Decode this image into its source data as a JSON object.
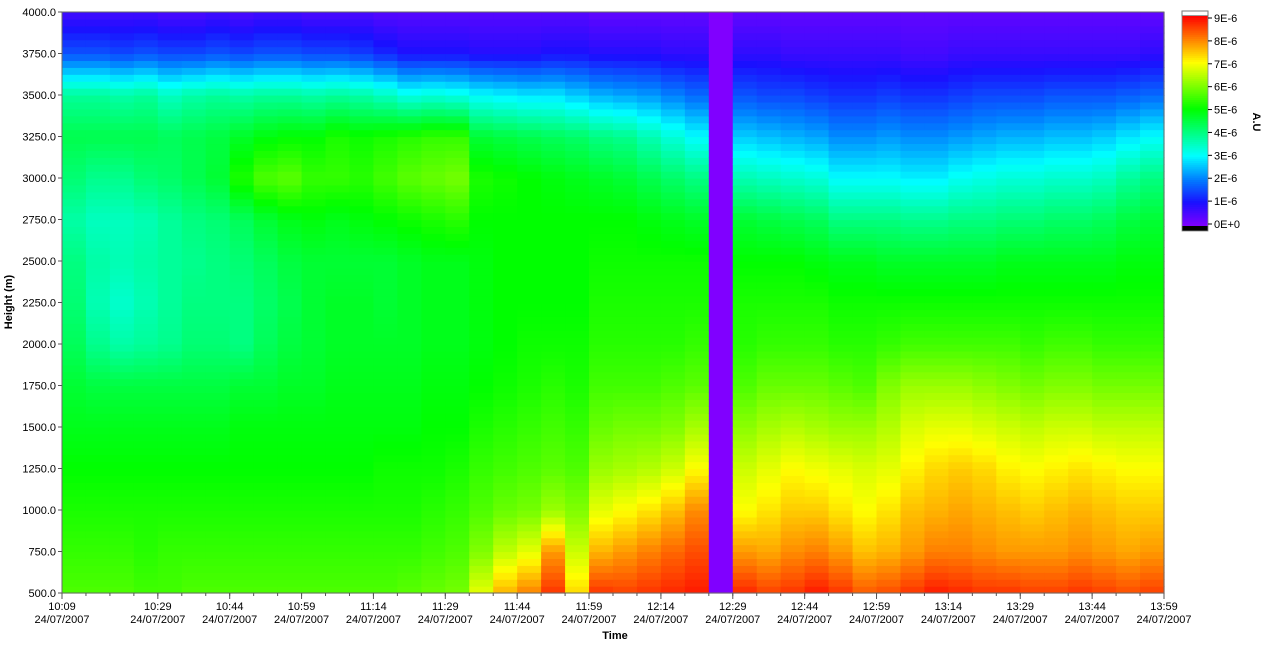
{
  "chart_data": {
    "type": "heatmap",
    "title": "",
    "xlabel": "Time",
    "ylabel": "Height (m)",
    "colorbar_label": "A.U",
    "ylim": [
      500,
      4000
    ],
    "y_ticks": [
      "500.0",
      "750.0",
      "1000.0",
      "1250.0",
      "1500.0",
      "1750.0",
      "2000.0",
      "2250.0",
      "2500.0",
      "2750.0",
      "3000.0",
      "3250.0",
      "3500.0",
      "3750.0",
      "4000.0"
    ],
    "x_start": "10:09",
    "x_end": "13:59",
    "x_ticks": [
      {
        "time": "10:09",
        "date": "24/07/2007"
      },
      {
        "time": "10:29",
        "date": "24/07/2007"
      },
      {
        "time": "10:44",
        "date": "24/07/2007"
      },
      {
        "time": "10:59",
        "date": "24/07/2007"
      },
      {
        "time": "11:14",
        "date": "24/07/2007"
      },
      {
        "time": "11:29",
        "date": "24/07/2007"
      },
      {
        "time": "11:44",
        "date": "24/07/2007"
      },
      {
        "time": "11:59",
        "date": "24/07/2007"
      },
      {
        "time": "12:14",
        "date": "24/07/2007"
      },
      {
        "time": "12:29",
        "date": "24/07/2007"
      },
      {
        "time": "12:44",
        "date": "24/07/2007"
      },
      {
        "time": "12:59",
        "date": "24/07/2007"
      },
      {
        "time": "13:14",
        "date": "24/07/2007"
      },
      {
        "time": "13:29",
        "date": "24/07/2007"
      },
      {
        "time": "13:44",
        "date": "24/07/2007"
      },
      {
        "time": "13:59",
        "date": "24/07/2007"
      }
    ],
    "colorbar_ticks": [
      "9E-6",
      "8E-6",
      "7E-6",
      "6E-6",
      "5E-6",
      "4E-6",
      "3E-6",
      "2E-6",
      "1E-6",
      "0E+0"
    ],
    "value_range": [
      0,
      9
    ],
    "value_unit_scale": "1E-6",
    "colormap": [
      "#8000ff",
      "#1a10ff",
      "#0080ff",
      "#00ffff",
      "#00ff80",
      "#00ff00",
      "#80ff00",
      "#ffff00",
      "#ff8000",
      "#ff0000"
    ],
    "grid": false,
    "missing_column": {
      "time": "12:24",
      "value": 0
    },
    "profile_heights": [
      500,
      750,
      1000,
      1250,
      1500,
      1750,
      2000,
      2250,
      2500,
      2750,
      3000,
      3250,
      3500,
      3750,
      4000
    ],
    "profiles": [
      {
        "time": "10:09",
        "values": [
          5.6,
          5.4,
          5.2,
          5.0,
          4.8,
          4.6,
          4.3,
          4.1,
          4.0,
          3.7,
          4.1,
          4.4,
          3.8,
          1.6,
          0.6
        ]
      },
      {
        "time": "10:14",
        "values": [
          5.6,
          5.4,
          5.2,
          5.0,
          4.8,
          4.5,
          3.9,
          3.6,
          3.7,
          3.5,
          3.9,
          4.4,
          3.8,
          1.6,
          0.6
        ]
      },
      {
        "time": "10:19",
        "values": [
          5.6,
          5.4,
          5.2,
          5.0,
          4.8,
          4.5,
          3.7,
          3.4,
          3.6,
          3.5,
          3.9,
          4.4,
          3.7,
          1.5,
          0.6
        ]
      },
      {
        "time": "10:24",
        "values": [
          5.5,
          5.3,
          5.2,
          5.0,
          4.8,
          4.5,
          3.8,
          3.6,
          3.7,
          3.6,
          4.1,
          4.4,
          3.8,
          1.6,
          0.6
        ]
      },
      {
        "time": "10:29",
        "values": [
          5.5,
          5.4,
          5.2,
          5.0,
          4.8,
          4.5,
          3.9,
          3.8,
          3.8,
          3.8,
          4.2,
          4.3,
          3.5,
          1.5,
          0.5
        ]
      },
      {
        "time": "10:34",
        "values": [
          5.6,
          5.4,
          5.2,
          5.0,
          4.8,
          4.5,
          4.1,
          4.0,
          3.9,
          4.0,
          4.4,
          4.4,
          3.7,
          1.5,
          0.5
        ]
      },
      {
        "time": "10:39",
        "values": [
          5.6,
          5.4,
          5.2,
          5.0,
          4.8,
          4.5,
          4.1,
          4.0,
          4.0,
          4.1,
          4.6,
          4.5,
          3.8,
          1.6,
          0.6
        ]
      },
      {
        "time": "10:44",
        "values": [
          5.6,
          5.4,
          5.2,
          5.0,
          4.9,
          4.6,
          4.0,
          4.0,
          4.1,
          4.3,
          5.2,
          4.7,
          3.7,
          1.5,
          0.5
        ]
      },
      {
        "time": "10:49",
        "values": [
          5.6,
          5.4,
          5.2,
          5.0,
          4.9,
          4.6,
          4.3,
          4.2,
          4.3,
          4.6,
          5.6,
          4.9,
          3.8,
          1.6,
          0.6
        ]
      },
      {
        "time": "10:54",
        "values": [
          5.6,
          5.4,
          5.2,
          5.0,
          4.9,
          4.7,
          4.5,
          4.4,
          4.5,
          4.8,
          5.7,
          5.0,
          3.8,
          1.6,
          0.6
        ]
      },
      {
        "time": "10:59",
        "values": [
          5.6,
          5.4,
          5.2,
          5.0,
          4.9,
          4.7,
          4.6,
          4.6,
          4.6,
          4.9,
          5.4,
          5.0,
          3.7,
          1.5,
          0.5
        ]
      },
      {
        "time": "11:04",
        "values": [
          5.6,
          5.4,
          5.2,
          5.0,
          4.9,
          4.8,
          4.7,
          4.7,
          4.6,
          4.8,
          5.4,
          5.2,
          3.8,
          1.5,
          0.5
        ]
      },
      {
        "time": "11:09",
        "values": [
          5.6,
          5.4,
          5.2,
          5.0,
          4.9,
          4.8,
          4.7,
          4.7,
          4.6,
          4.9,
          5.3,
          5.1,
          3.7,
          1.4,
          0.5
        ]
      },
      {
        "time": "11:14",
        "values": [
          5.6,
          5.4,
          5.2,
          5.1,
          4.9,
          4.8,
          4.7,
          4.6,
          4.6,
          5.0,
          5.5,
          5.2,
          3.5,
          1.2,
          0.4
        ]
      },
      {
        "time": "11:19",
        "values": [
          5.7,
          5.4,
          5.2,
          5.1,
          4.9,
          4.8,
          4.7,
          4.7,
          4.7,
          5.1,
          5.7,
          5.3,
          3.2,
          1.0,
          0.4
        ]
      },
      {
        "time": "11:24",
        "values": [
          5.8,
          5.5,
          5.3,
          5.1,
          5.0,
          4.9,
          4.8,
          4.8,
          4.8,
          5.2,
          5.8,
          5.4,
          3.3,
          1.0,
          0.4
        ]
      },
      {
        "time": "11:29",
        "values": [
          5.9,
          5.6,
          5.4,
          5.2,
          5.0,
          4.9,
          4.8,
          4.8,
          4.8,
          5.3,
          5.9,
          5.4,
          3.2,
          1.0,
          0.4
        ]
      },
      {
        "time": "11:34",
        "values": [
          6.8,
          6.0,
          5.6,
          5.4,
          5.2,
          5.0,
          4.9,
          4.9,
          4.9,
          5.0,
          5.2,
          4.6,
          3.0,
          0.9,
          0.4
        ]
      },
      {
        "time": "11:39",
        "values": [
          7.6,
          6.5,
          5.8,
          5.5,
          5.3,
          5.1,
          5.0,
          5.0,
          5.0,
          5.0,
          5.1,
          4.5,
          2.9,
          0.9,
          0.4
        ]
      },
      {
        "time": "11:44",
        "values": [
          8.0,
          6.8,
          5.9,
          5.6,
          5.4,
          5.2,
          5.1,
          5.0,
          5.0,
          5.0,
          5.0,
          4.4,
          2.8,
          0.9,
          0.4
        ]
      },
      {
        "time": "11:49",
        "values": [
          8.6,
          7.8,
          6.2,
          5.7,
          5.5,
          5.3,
          5.1,
          5.0,
          5.0,
          5.0,
          4.9,
          4.3,
          2.8,
          1.0,
          0.4
        ]
      },
      {
        "time": "11:54",
        "values": [
          7.3,
          6.6,
          6.0,
          5.6,
          5.4,
          5.2,
          5.1,
          5.0,
          5.0,
          5.0,
          4.8,
          4.2,
          2.6,
          1.0,
          0.4
        ]
      },
      {
        "time": "11:59",
        "values": [
          8.6,
          7.6,
          6.8,
          6.2,
          5.8,
          5.5,
          5.3,
          5.2,
          5.1,
          5.0,
          4.7,
          4.0,
          2.4,
          0.9,
          0.3
        ]
      },
      {
        "time": "12:04",
        "values": [
          8.5,
          7.8,
          7.0,
          6.3,
          5.9,
          5.5,
          5.3,
          5.2,
          5.1,
          5.0,
          4.6,
          3.9,
          2.3,
          0.9,
          0.3
        ]
      },
      {
        "time": "12:09",
        "values": [
          8.6,
          8.0,
          7.2,
          6.4,
          5.9,
          5.5,
          5.3,
          5.2,
          5.1,
          4.9,
          4.4,
          3.6,
          2.2,
          0.9,
          0.3
        ]
      },
      {
        "time": "12:14",
        "values": [
          8.7,
          8.2,
          7.5,
          6.6,
          6.0,
          5.6,
          5.3,
          5.2,
          5.1,
          4.8,
          4.2,
          3.3,
          2.0,
          0.8,
          0.3
        ]
      },
      {
        "time": "12:19",
        "values": [
          8.8,
          8.4,
          7.9,
          7.0,
          6.3,
          5.7,
          5.4,
          5.2,
          5.1,
          4.7,
          4.0,
          3.0,
          1.8,
          0.8,
          0.3
        ]
      },
      {
        "time": "12:24",
        "values": [
          0,
          0,
          0,
          0,
          0,
          0,
          0,
          0,
          0,
          0,
          0,
          0,
          0,
          0,
          0
        ]
      },
      {
        "time": "12:29",
        "values": [
          8.7,
          7.8,
          7.0,
          6.6,
          6.1,
          5.6,
          5.3,
          5.2,
          5.0,
          4.6,
          3.6,
          2.6,
          1.6,
          0.8,
          0.3
        ]
      },
      {
        "time": "12:34",
        "values": [
          8.5,
          7.7,
          7.2,
          6.8,
          6.3,
          5.8,
          5.4,
          5.2,
          5.0,
          4.5,
          3.5,
          2.5,
          1.5,
          0.8,
          0.3
        ]
      },
      {
        "time": "12:39",
        "values": [
          8.6,
          7.9,
          7.4,
          7.0,
          6.4,
          5.8,
          5.4,
          5.2,
          5.0,
          4.4,
          3.4,
          2.4,
          1.5,
          0.7,
          0.3
        ]
      },
      {
        "time": "12:44",
        "values": [
          8.8,
          8.0,
          7.4,
          6.9,
          6.3,
          5.8,
          5.4,
          5.2,
          4.9,
          4.3,
          3.3,
          2.3,
          1.4,
          0.7,
          0.3
        ]
      },
      {
        "time": "12:49",
        "values": [
          8.6,
          7.8,
          7.2,
          6.8,
          6.2,
          5.7,
          5.3,
          5.1,
          4.8,
          4.0,
          3.0,
          2.1,
          1.3,
          0.7,
          0.3
        ]
      },
      {
        "time": "12:54",
        "values": [
          8.3,
          7.5,
          7.0,
          6.7,
          6.2,
          5.6,
          5.3,
          5.1,
          4.8,
          4.0,
          3.0,
          2.1,
          1.3,
          0.7,
          0.3
        ]
      },
      {
        "time": "12:59",
        "values": [
          8.4,
          7.6,
          7.2,
          6.8,
          6.4,
          6.0,
          5.4,
          5.1,
          4.7,
          4.0,
          3.0,
          2.2,
          1.4,
          0.7,
          0.3
        ]
      },
      {
        "time": "13:04",
        "values": [
          8.6,
          7.8,
          7.5,
          7.1,
          6.7,
          6.2,
          5.5,
          5.1,
          4.7,
          3.9,
          2.9,
          2.1,
          1.3,
          0.6,
          0.3
        ]
      },
      {
        "time": "13:09",
        "values": [
          8.8,
          8.0,
          7.6,
          7.3,
          6.8,
          6.2,
          5.5,
          5.1,
          4.7,
          3.9,
          2.9,
          2.1,
          1.3,
          0.6,
          0.3
        ]
      },
      {
        "time": "13:14",
        "values": [
          8.7,
          8.0,
          7.7,
          7.4,
          6.8,
          6.2,
          5.5,
          5.1,
          4.7,
          4.0,
          3.1,
          2.2,
          1.4,
          0.7,
          0.3
        ]
      },
      {
        "time": "13:19",
        "values": [
          8.6,
          7.9,
          7.6,
          7.3,
          6.7,
          6.1,
          5.5,
          5.1,
          4.7,
          4.0,
          3.2,
          2.3,
          1.5,
          0.7,
          0.3
        ]
      },
      {
        "time": "13:24",
        "values": [
          8.6,
          7.8,
          7.5,
          7.1,
          6.6,
          6.0,
          5.5,
          5.1,
          4.8,
          4.1,
          3.3,
          2.4,
          1.5,
          0.7,
          0.3
        ]
      },
      {
        "time": "13:29",
        "values": [
          8.5,
          7.8,
          7.4,
          7.0,
          6.5,
          5.9,
          5.4,
          5.1,
          4.8,
          4.1,
          3.3,
          2.4,
          1.5,
          0.7,
          0.3
        ]
      },
      {
        "time": "13:34",
        "values": [
          8.5,
          7.8,
          7.5,
          7.1,
          6.6,
          6.0,
          5.5,
          5.1,
          4.8,
          4.2,
          3.4,
          2.5,
          1.6,
          0.7,
          0.3
        ]
      },
      {
        "time": "13:39",
        "values": [
          8.6,
          7.9,
          7.6,
          7.2,
          6.6,
          6.0,
          5.5,
          5.1,
          4.8,
          4.2,
          3.4,
          2.5,
          1.6,
          0.7,
          0.3
        ]
      },
      {
        "time": "13:44",
        "values": [
          8.5,
          7.8,
          7.5,
          7.1,
          6.5,
          5.9,
          5.4,
          5.1,
          4.8,
          4.3,
          3.5,
          2.6,
          1.6,
          0.7,
          0.3
        ]
      },
      {
        "time": "13:49",
        "values": [
          8.4,
          7.7,
          7.4,
          7.0,
          6.5,
          5.9,
          5.4,
          5.1,
          4.9,
          4.5,
          3.8,
          2.8,
          1.7,
          0.7,
          0.3
        ]
      },
      {
        "time": "13:54",
        "values": [
          8.5,
          7.8,
          7.4,
          7.0,
          6.5,
          5.9,
          5.4,
          5.1,
          4.9,
          4.6,
          4.0,
          3.0,
          1.8,
          0.8,
          0.3
        ]
      }
    ]
  }
}
